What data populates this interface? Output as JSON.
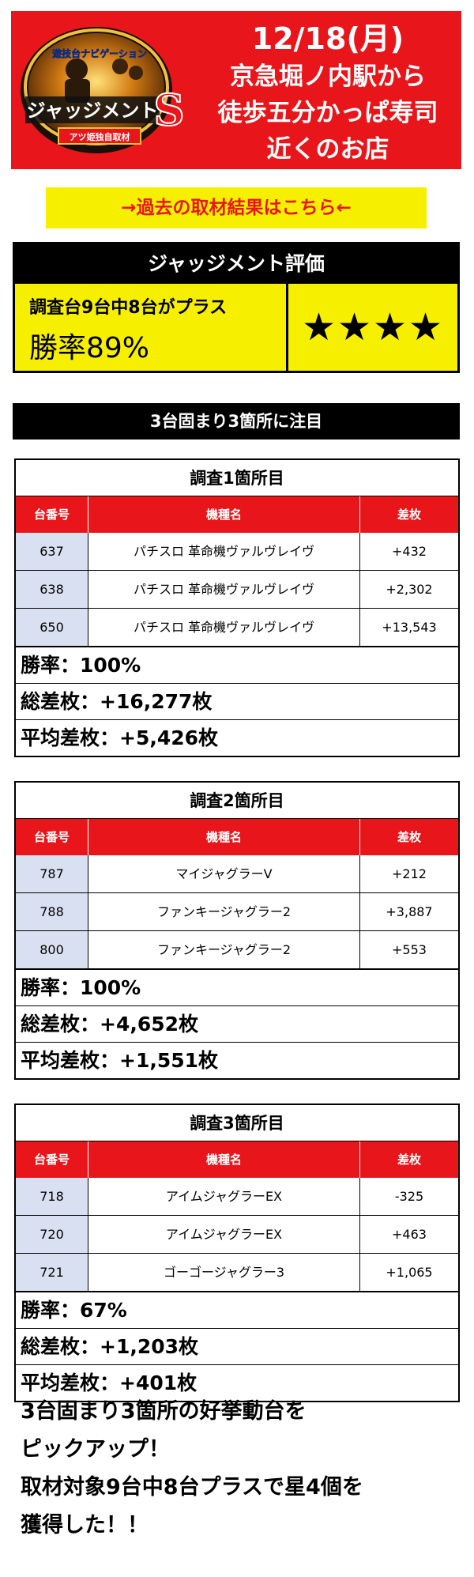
{
  "header": {
    "logo_text_top": "遊技台ナビゲーション",
    "logo_text_main": "ジャッジメント",
    "logo_text_s": "S",
    "logo_text_sub": "アツ姫独自取材",
    "date": "12/18(月)",
    "lines": [
      "京急堀ノ内駅から",
      "徒歩五分かっぱ寿司",
      "近くのお店"
    ]
  },
  "past_link": "→過去の取材結果はこちら←",
  "evaluation": {
    "title": "ジャッジメント評価",
    "summary": "調査台9台中8台がプラス",
    "rate": "勝率89%",
    "stars": "★★★★",
    "star_count": 4
  },
  "section_title": "3台固まり3箇所に注目",
  "columns": [
    "台番号",
    "機種名",
    "差枚"
  ],
  "surveys": [
    {
      "title": "調査1箇所目",
      "rows": [
        [
          "637",
          "パチスロ 革命機ヴァルヴレイヴ",
          "+432"
        ],
        [
          "638",
          "パチスロ 革命機ヴァルヴレイヴ",
          "+2,302"
        ],
        [
          "650",
          "パチスロ 革命機ヴァルヴレイヴ",
          "+13,543"
        ]
      ],
      "win_rate": "勝率：100%",
      "total": "総差枚：+16,277枚",
      "average": "平均差枚：+5,426枚"
    },
    {
      "title": "調査2箇所目",
      "rows": [
        [
          "787",
          "マイジャグラーV",
          "+212"
        ],
        [
          "788",
          "ファンキージャグラー2",
          "+3,887"
        ],
        [
          "800",
          "ファンキージャグラー2",
          "+553"
        ]
      ],
      "win_rate": "勝率：100%",
      "total": "総差枚：+4,652枚",
      "average": "平均差枚：+1,551枚"
    },
    {
      "title": "調査3箇所目",
      "rows": [
        [
          "718",
          "アイムジャグラーEX",
          "-325"
        ],
        [
          "720",
          "アイムジャグラーEX",
          "+463"
        ],
        [
          "721",
          "ゴーゴージャグラー3",
          "+1,065"
        ]
      ],
      "win_rate": "勝率：67%",
      "total": "総差枚：+1,203枚",
      "average": "平均差枚：+401枚"
    }
  ],
  "comment": [
    "3台固まり3箇所の好挙動台を",
    "ピックアップ！",
    "取材対象9台中8台プラスで星4個を",
    "獲得した！！"
  ],
  "colors": {
    "red": "#e8161b",
    "yellow": "#f7ef00",
    "cell_blue": "#d9e0f1",
    "black": "#000000"
  }
}
